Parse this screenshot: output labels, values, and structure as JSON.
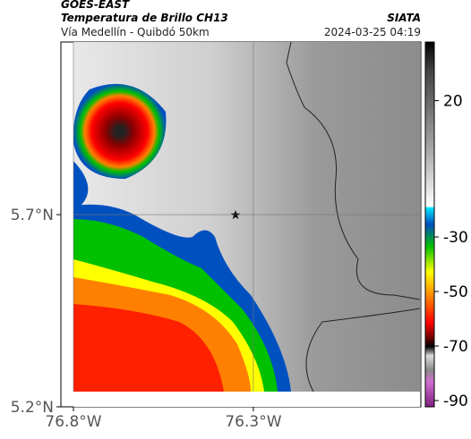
{
  "header": {
    "product": "GOES-EAST",
    "title": "Temperatura de Brillo CH13",
    "subtitle": "Vía Medellín - Quibdó 50km",
    "source": "SIATA",
    "timestamp": "2024-03-25 04:19"
  },
  "map": {
    "xlim": [
      -76.8,
      -75.837
    ],
    "ylim": [
      5.2,
      6.149
    ],
    "xticks": [
      {
        "value": -76.8,
        "label": "76.8°W"
      },
      {
        "value": -76.3,
        "label": "76.3°W"
      }
    ],
    "yticks": [
      {
        "value": 5.7,
        "label": "5.7°N"
      },
      {
        "value": 5.2,
        "label": "5.2°N"
      }
    ],
    "grid": true
  },
  "colorbar": {
    "lim": [
      41.5,
      -92.3
    ],
    "ticks": [
      20,
      -30,
      -50,
      -70,
      -90
    ]
  }
}
